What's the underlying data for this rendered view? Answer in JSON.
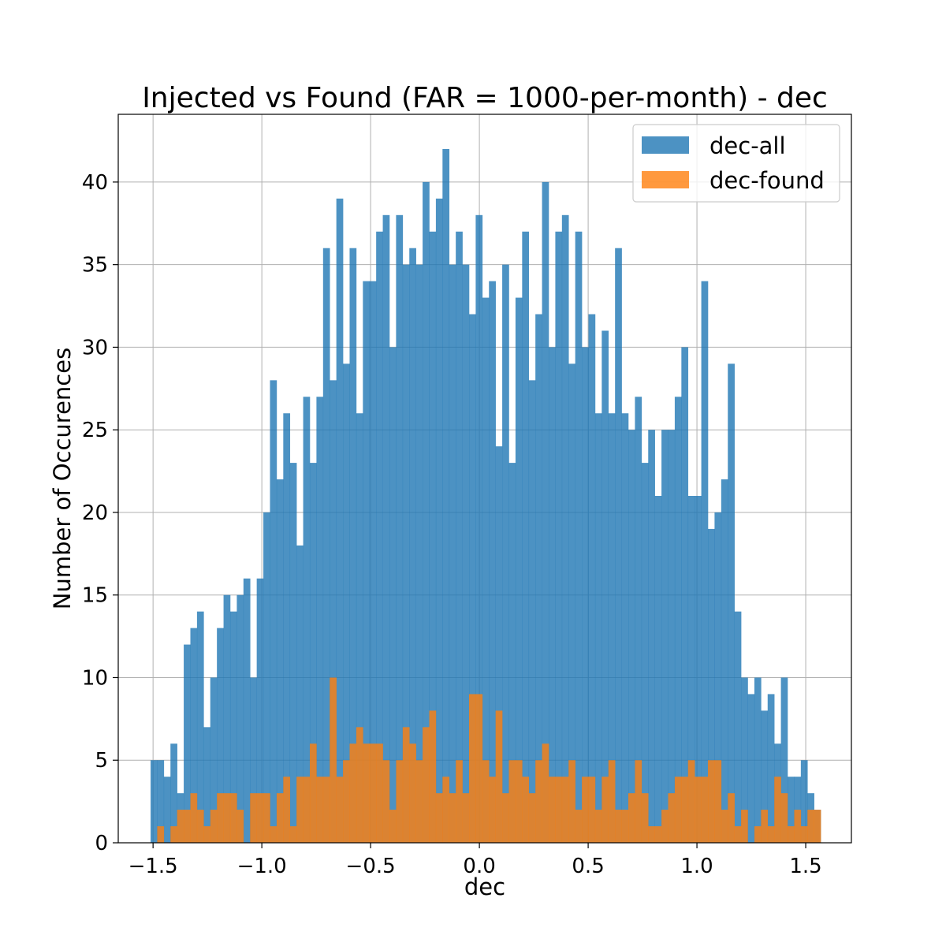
{
  "chart_data": {
    "type": "bar",
    "title": "Injected vs Found (FAR = 1000-per-month) - dec",
    "xlabel": "dec",
    "ylabel": "Number of Occurences",
    "xlim": [
      -1.66,
      1.71
    ],
    "ylim": [
      0,
      44.1
    ],
    "xticks": [
      -1.5,
      -1.0,
      -0.5,
      0.0,
      0.5,
      1.0,
      1.5
    ],
    "xtick_labels": [
      "−1.5",
      "−1.0",
      "−0.5",
      "0.0",
      "0.5",
      "1.0",
      "1.5"
    ],
    "yticks": [
      0,
      5,
      10,
      15,
      20,
      25,
      30,
      35,
      40
    ],
    "ytick_labels": [
      "0",
      "5",
      "10",
      "15",
      "20",
      "25",
      "30",
      "35",
      "40"
    ],
    "grid": true,
    "legend_position": "top-right",
    "bin_start": -1.5115,
    "bin_width": 0.0305,
    "series": [
      {
        "name": "dec-all",
        "color": "#1f77b4",
        "alpha": 0.8,
        "values": [
          5,
          5,
          4,
          6,
          3,
          12,
          13,
          14,
          7,
          10,
          13,
          15,
          14,
          15,
          16,
          10,
          16,
          20,
          28,
          22,
          26,
          23,
          18,
          27,
          23,
          27,
          36,
          28,
          39,
          29,
          36,
          26,
          34,
          34,
          37,
          38,
          30,
          38,
          35,
          36,
          35,
          40,
          37,
          39,
          42,
          35,
          37,
          35,
          32,
          38,
          33,
          34,
          24,
          35,
          23,
          33,
          37,
          28,
          32,
          40,
          30,
          37,
          38,
          29,
          37,
          30,
          32,
          26,
          31,
          26,
          36,
          26,
          25,
          27,
          23,
          25,
          21,
          25,
          25,
          27,
          30,
          21,
          21,
          34,
          19,
          20,
          22,
          29,
          14,
          10,
          9,
          10,
          8,
          9,
          6,
          10,
          4,
          4,
          5,
          3,
          2
        ],
        "values_note": ""
      },
      {
        "name": "dec-found",
        "color": "#ff7f0e",
        "alpha": 0.8,
        "values": [
          0,
          1,
          0,
          1,
          2,
          2,
          3,
          2,
          1,
          2,
          3,
          3,
          3,
          2,
          0,
          3,
          3,
          3,
          1,
          3,
          4,
          1,
          4,
          4,
          6,
          4,
          4,
          10,
          4,
          5,
          6,
          7,
          6,
          6,
          6,
          5,
          2,
          5,
          7,
          6,
          5,
          7,
          8,
          3,
          4,
          3,
          5,
          3,
          9,
          9,
          5,
          4,
          8,
          3,
          5,
          5,
          4,
          3,
          5,
          6,
          4,
          4,
          4,
          5,
          2,
          4,
          4,
          2,
          4,
          5,
          2,
          2,
          3,
          5,
          3,
          1,
          1,
          2,
          3,
          4,
          4,
          5,
          4,
          4,
          5,
          5,
          2,
          3,
          1,
          2,
          0,
          1,
          2,
          1,
          4,
          3,
          1,
          2,
          1,
          2,
          2
        ]
      }
    ]
  }
}
